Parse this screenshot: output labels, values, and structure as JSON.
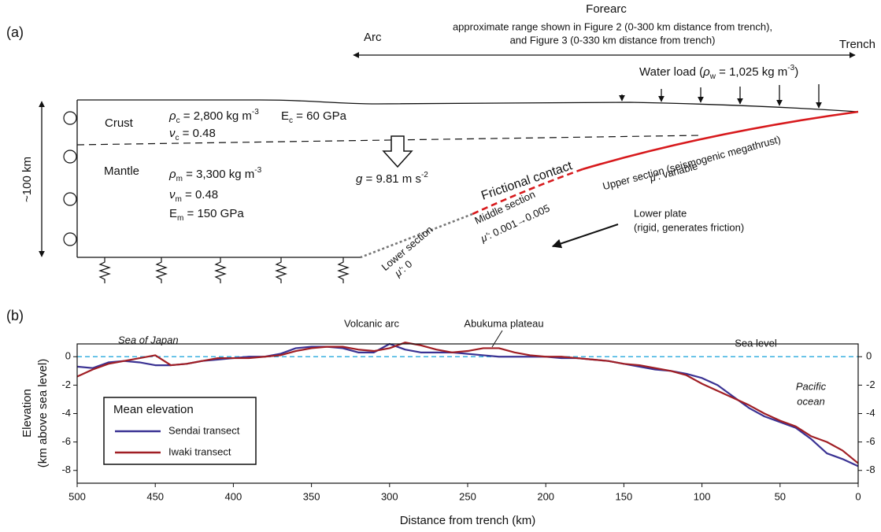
{
  "panel_a": {
    "label": "(a)",
    "forearc": "Forearc",
    "range_note": [
      "approximate range shown in Figure 2 (0-300 km distance from trench),",
      "and Figure 3 (0-330 km distance from trench)"
    ],
    "arc": "Arc",
    "trench": "Trench",
    "water_load": [
      "Water load (",
      "ρ",
      "w",
      " = 1,025 kg m",
      "-3",
      ")"
    ],
    "depth": "~100 km",
    "crust": {
      "name": "Crust",
      "density": [
        "ρ",
        "c",
        " = 2,800 kg m",
        "-3"
      ],
      "modulus": [
        "E",
        "c",
        " = 60 GPa"
      ],
      "poisson": [
        "ν",
        "c",
        " = 0.48"
      ]
    },
    "mantle": {
      "name": "Mantle",
      "density": [
        "ρ",
        "m",
        " = 3,300 kg m",
        "-3"
      ],
      "poisson": [
        "ν",
        "m",
        " = 0.48"
      ],
      "modulus": [
        "E",
        "m",
        " = 150 GPa"
      ]
    },
    "gravity": [
      "g",
      " = 9.81 m s",
      "-2"
    ],
    "frictional_contact": "Frictional contact",
    "upper_section": {
      "name": "Upper section (seismogenic megathrust)",
      "friction": [
        "μ'",
        ": variable"
      ]
    },
    "middle_section": {
      "name": "Middle section",
      "friction": [
        "μ'",
        ": 0.001→0.005"
      ]
    },
    "lower_section": {
      "name": "Lower section",
      "friction": [
        "μ'",
        ": 0"
      ]
    },
    "lower_plate": [
      "Lower plate",
      "(rigid, generates friction)"
    ]
  },
  "chart_data": {
    "type": "line",
    "panel_label": "(b)",
    "y_label": [
      "Elevation",
      "(km above sea level)"
    ],
    "x_label": "Distance from trench (km)",
    "x": [
      500,
      490,
      480,
      470,
      460,
      450,
      440,
      430,
      420,
      410,
      400,
      390,
      380,
      370,
      360,
      350,
      340,
      330,
      320,
      310,
      300,
      290,
      280,
      270,
      260,
      250,
      240,
      230,
      220,
      210,
      200,
      190,
      180,
      170,
      160,
      150,
      140,
      130,
      120,
      110,
      100,
      90,
      80,
      70,
      60,
      50,
      40,
      30,
      20,
      10,
      0
    ],
    "series": [
      {
        "name": "Sendai transect",
        "color": "#3a3293",
        "values": [
          -0.7,
          -0.8,
          -0.4,
          -0.3,
          -0.4,
          -0.6,
          -0.6,
          -0.5,
          -0.3,
          -0.2,
          -0.1,
          0,
          0,
          0.2,
          0.6,
          0.7,
          0.7,
          0.6,
          0.3,
          0.3,
          0.9,
          0.5,
          0.3,
          0.3,
          0.3,
          0.2,
          0.1,
          0,
          0,
          0,
          0,
          -0.1,
          -0.1,
          -0.2,
          -0.3,
          -0.5,
          -0.7,
          -0.9,
          -1.0,
          -1.2,
          -1.5,
          -2.0,
          -2.8,
          -3.6,
          -4.2,
          -4.6,
          -5.0,
          -5.8,
          -6.8,
          -7.2,
          -7.7
        ]
      },
      {
        "name": "Iwaki transect",
        "color": "#a01e24",
        "values": [
          -1.4,
          -0.9,
          -0.5,
          -0.3,
          -0.1,
          0.1,
          -0.6,
          -0.5,
          -0.3,
          -0.1,
          -0.1,
          -0.1,
          0,
          0.1,
          0.4,
          0.6,
          0.7,
          0.7,
          0.5,
          0.4,
          0.6,
          1.0,
          0.8,
          0.5,
          0.3,
          0.4,
          0.6,
          0.6,
          0.3,
          0.1,
          0,
          0,
          -0.1,
          -0.2,
          -0.3,
          -0.5,
          -0.6,
          -0.8,
          -1.0,
          -1.3,
          -1.9,
          -2.4,
          -2.9,
          -3.4,
          -4.0,
          -4.5,
          -4.9,
          -5.6,
          -6.0,
          -6.6,
          -7.5
        ]
      }
    ],
    "xlim": [
      500,
      0
    ],
    "xticks": [
      500,
      450,
      400,
      350,
      300,
      250,
      200,
      150,
      100,
      50,
      0
    ],
    "ylim": [
      -8.9,
      0.9
    ],
    "yticks": [
      -8,
      -6,
      -4,
      -2,
      0
    ],
    "y2lim": [
      -8.9,
      0.9
    ],
    "y2ticks": [
      -8,
      -6,
      -4,
      -2,
      0
    ],
    "reference_line": {
      "value": 0,
      "label": "Sea level",
      "color": "#3ab0e0"
    },
    "legend_title": "Mean elevation",
    "legend_position": "lower left",
    "annotations": [
      "Sea of Japan",
      "Volcanic arc",
      "Abukuma plateau",
      [
        "Pacific",
        "ocean"
      ]
    ]
  }
}
